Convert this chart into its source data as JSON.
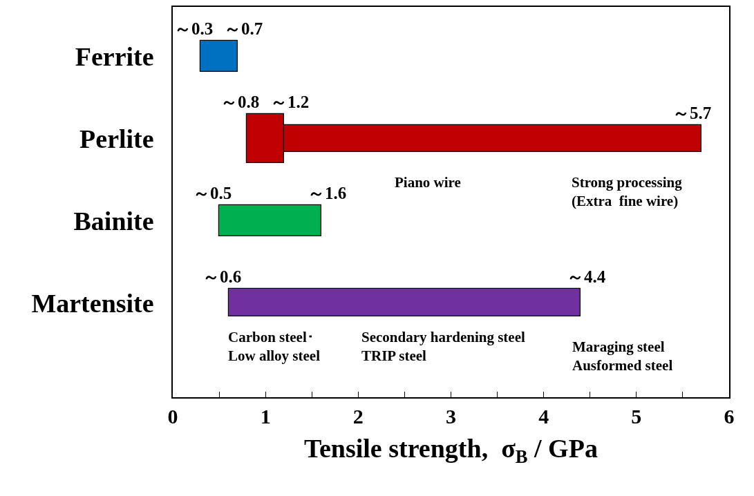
{
  "chart_data": {
    "type": "bar",
    "orientation": "horizontal",
    "categories": [
      "Ferrite",
      "Perlite",
      "Bainite",
      "Martensite"
    ],
    "series": [
      {
        "values": [
          0.4,
          0.4,
          1.1,
          3.8
        ],
        "base": [
          0.3,
          0.8,
          0.5,
          0.6
        ],
        "colors": [
          "#0070c0",
          "#c00000",
          "#00b050",
          "#7030a0"
        ]
      },
      {
        "values": [
          null,
          4.5,
          null,
          null
        ],
        "base": [
          null,
          1.2,
          null,
          null
        ],
        "colors": [
          null,
          "#c00000",
          null,
          null
        ]
      }
    ],
    "xlim": [
      0,
      6
    ],
    "xticks": [
      0,
      {
        "value": 0.5,
        "label": null
      },
      1,
      {
        "value": 1.5,
        "label": null
      },
      2,
      {
        "value": 2.5,
        "label": null
      },
      3,
      {
        "value": 3.5,
        "label": null
      },
      4,
      {
        "value": 4.5,
        "label": null
      },
      5,
      {
        "value": 5.5,
        "label": null
      },
      6
    ],
    "xlabel": "Tensile strength,  σ$_{B}$ / GPa",
    "annotations": [
      {
        "text": "～0.3",
        "x": 0.3,
        "y": "Ferrite"
      },
      {
        "text": "～0.7",
        "x": 0.7,
        "y": "Ferrite"
      },
      {
        "text": "～0.8",
        "x": 0.8,
        "y": "Perlite"
      },
      {
        "text": "～1.2",
        "x": 1.2,
        "y": "Perlite"
      },
      {
        "text": "～5.7",
        "x": 5.7,
        "y": "Perlite"
      },
      {
        "text": "～0.5",
        "x": 0.5,
        "y": "Bainite"
      },
      {
        "text": "～1.6",
        "x": 1.6,
        "y": "Bainite"
      },
      {
        "text": "～0.6",
        "x": 0.6,
        "y": "Martensite"
      },
      {
        "text": "～4.4",
        "x": 4.4,
        "y": "Martensite"
      },
      "Piano wire",
      "Strong processing\n(Extra  fine wire)",
      "Carbon steel･\nLow alloy steel",
      "Secondary hardening steel\nTRIP steel",
      "Maraging steel\nAusformed steel"
    ]
  }
}
